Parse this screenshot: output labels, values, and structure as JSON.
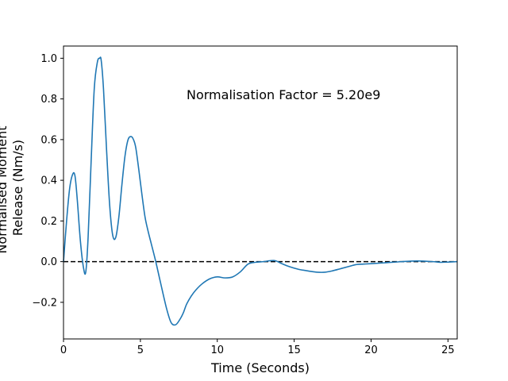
{
  "chart_data": {
    "type": "line",
    "title": "",
    "xlabel": "Time (Seconds)",
    "ylabel": [
      "Normalised Moment",
      "Release (Nm/s)"
    ],
    "annotation": "Normalisation Factor = 5.20e9",
    "xlim": [
      0,
      25.6
    ],
    "ylim": [
      -0.38,
      1.06
    ],
    "xticks": [
      0,
      5,
      10,
      15,
      20,
      25
    ],
    "xtick_labels": [
      "0",
      "5",
      "10",
      "15",
      "20",
      "25"
    ],
    "yticks": [
      -0.2,
      0.0,
      0.2,
      0.4,
      0.6,
      0.8,
      1.0
    ],
    "ytick_labels": [
      "−0.2",
      "0.0",
      "0.2",
      "0.4",
      "0.6",
      "0.8",
      "1.0"
    ],
    "grid": false,
    "legend": "none",
    "reference_line": {
      "y": 0,
      "style": "dashed",
      "color": "#000000"
    },
    "series": [
      {
        "color": "#1f77b4",
        "x": [
          0,
          0.2,
          0.4,
          0.6,
          0.75,
          0.9,
          1.1,
          1.3,
          1.45,
          1.6,
          1.8,
          2.0,
          2.2,
          2.35,
          2.45,
          2.6,
          2.8,
          3.0,
          3.2,
          3.4,
          3.6,
          3.8,
          4.0,
          4.2,
          4.4,
          4.55,
          4.7,
          4.9,
          5.1,
          5.3,
          5.5,
          5.7,
          6.0,
          6.3,
          6.7,
          7.0,
          7.3,
          7.6,
          7.8,
          8.0,
          8.3,
          8.6,
          9.0,
          9.5,
          10.0,
          10.5,
          11.0,
          11.5,
          12.0,
          12.5,
          13.0,
          13.5,
          13.8,
          14.2,
          14.7,
          15.3,
          16.0,
          16.5,
          17.0,
          17.5,
          18.0,
          18.5,
          19.0,
          19.5,
          20.0,
          21.0,
          22.0,
          23.0,
          24.0,
          24.5,
          25.0,
          25.6
        ],
        "y": [
          0.0,
          0.2,
          0.36,
          0.43,
          0.42,
          0.3,
          0.1,
          -0.03,
          -0.05,
          0.12,
          0.5,
          0.85,
          0.98,
          1.0,
          0.99,
          0.85,
          0.55,
          0.28,
          0.13,
          0.12,
          0.22,
          0.38,
          0.52,
          0.6,
          0.615,
          0.6,
          0.56,
          0.45,
          0.33,
          0.22,
          0.15,
          0.09,
          0.0,
          -0.1,
          -0.23,
          -0.3,
          -0.31,
          -0.28,
          -0.25,
          -0.21,
          -0.17,
          -0.14,
          -0.11,
          -0.085,
          -0.075,
          -0.08,
          -0.075,
          -0.05,
          -0.012,
          -0.003,
          0.0,
          0.005,
          0.004,
          -0.01,
          -0.025,
          -0.038,
          -0.047,
          -0.052,
          -0.052,
          -0.045,
          -0.035,
          -0.025,
          -0.015,
          -0.012,
          -0.01,
          -0.005,
          0.0,
          0.003,
          0.0,
          -0.003,
          -0.002,
          0.0
        ]
      }
    ]
  }
}
